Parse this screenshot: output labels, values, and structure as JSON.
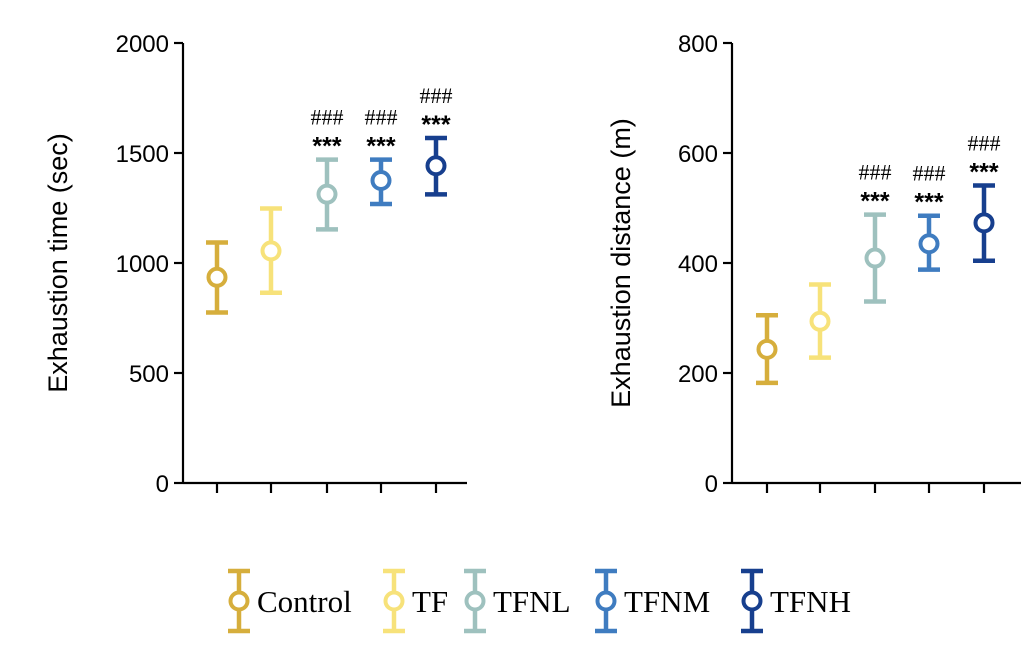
{
  "colors": {
    "Control": "#D6AE3C",
    "TF": "#F7E27A",
    "TFNL": "#9EC1BE",
    "TFNM": "#3F7CC0",
    "TFNH": "#173F8E"
  },
  "legend": [
    "Control",
    "TF",
    "TFNL",
    "TFNM",
    "TFNH"
  ],
  "chart_data": [
    {
      "type": "scatter",
      "ylabel": "Exhaustion time (sec)",
      "ylim": [
        0,
        2000
      ],
      "yticks": [
        0,
        500,
        1000,
        1500,
        2000
      ],
      "categories": [
        "Control",
        "TF",
        "TFNL",
        "TFNM",
        "TFNH"
      ],
      "series": [
        {
          "name": "Control",
          "mean": 935,
          "lower": 775,
          "upper": 1093
        },
        {
          "name": "TF",
          "mean": 1055,
          "lower": 865,
          "upper": 1248
        },
        {
          "name": "TFNL",
          "mean": 1313,
          "lower": 1153,
          "upper": 1470
        },
        {
          "name": "TFNM",
          "mean": 1375,
          "lower": 1268,
          "upper": 1470
        },
        {
          "name": "TFNH",
          "mean": 1442,
          "lower": 1312,
          "upper": 1568
        }
      ],
      "annotations": [
        {
          "category": "TFNL",
          "lines": [
            "###",
            "***"
          ]
        },
        {
          "category": "TFNM",
          "lines": [
            "###",
            "***"
          ]
        },
        {
          "category": "TFNH",
          "lines": [
            "###",
            "***"
          ]
        }
      ]
    },
    {
      "type": "scatter",
      "ylabel": "Exhaustion distance (m)",
      "ylim": [
        0,
        800
      ],
      "yticks": [
        0,
        200,
        400,
        600,
        800
      ],
      "categories": [
        "Control",
        "TF",
        "TFNL",
        "TFNM",
        "TFNH"
      ],
      "series": [
        {
          "name": "Control",
          "mean": 243,
          "lower": 182,
          "upper": 305
        },
        {
          "name": "TF",
          "mean": 294,
          "lower": 228,
          "upper": 361
        },
        {
          "name": "TFNL",
          "mean": 409,
          "lower": 330,
          "upper": 488
        },
        {
          "name": "TFNM",
          "mean": 435,
          "lower": 388,
          "upper": 486
        },
        {
          "name": "TFNH",
          "mean": 473,
          "lower": 404,
          "upper": 541
        }
      ],
      "annotations": [
        {
          "category": "TFNL",
          "lines": [
            "###",
            "***"
          ]
        },
        {
          "category": "TFNM",
          "lines": [
            "###",
            "***"
          ]
        },
        {
          "category": "TFNH",
          "lines": [
            "###",
            "***"
          ]
        }
      ]
    }
  ]
}
